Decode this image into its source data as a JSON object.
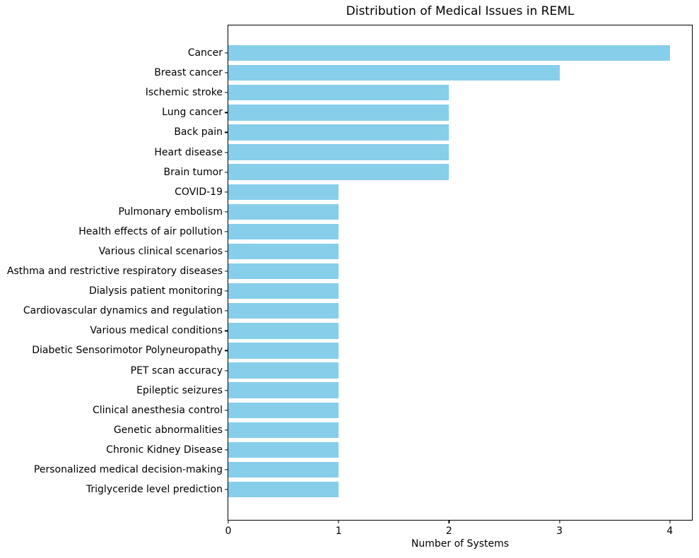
{
  "chart_data": {
    "type": "bar",
    "orientation": "horizontal",
    "title": "Distribution of Medical Issues in REML",
    "xlabel": "Number of Systems",
    "ylabel": "",
    "categories": [
      "Cancer",
      "Breast cancer",
      "Ischemic stroke",
      "Lung cancer",
      "Back pain",
      "Heart disease",
      "Brain tumor",
      "COVID-19",
      "Pulmonary embolism",
      "Health effects of air pollution",
      "Various clinical scenarios",
      "Asthma and restrictive respiratory diseases",
      "Dialysis patient monitoring",
      "Cardiovascular dynamics and regulation",
      "Various medical conditions",
      "Diabetic Sensorimotor Polyneuropathy",
      "PET scan accuracy",
      "Epileptic seizures",
      "Clinical anesthesia control",
      "Genetic abnormalities",
      "Chronic Kidney Disease",
      "Personalized medical decision-making",
      "Triglyceride level prediction"
    ],
    "values": [
      4,
      3,
      2,
      2,
      2,
      2,
      2,
      1,
      1,
      1,
      1,
      1,
      1,
      1,
      1,
      1,
      1,
      1,
      1,
      1,
      1,
      1,
      1
    ],
    "xticks": [
      0,
      1,
      2,
      3,
      4
    ],
    "xlim": [
      0,
      4.2
    ],
    "grid": false,
    "legend": "none",
    "bar_color": "#87ceeb",
    "text_color": "#000000",
    "background_color": "#ffffff"
  }
}
